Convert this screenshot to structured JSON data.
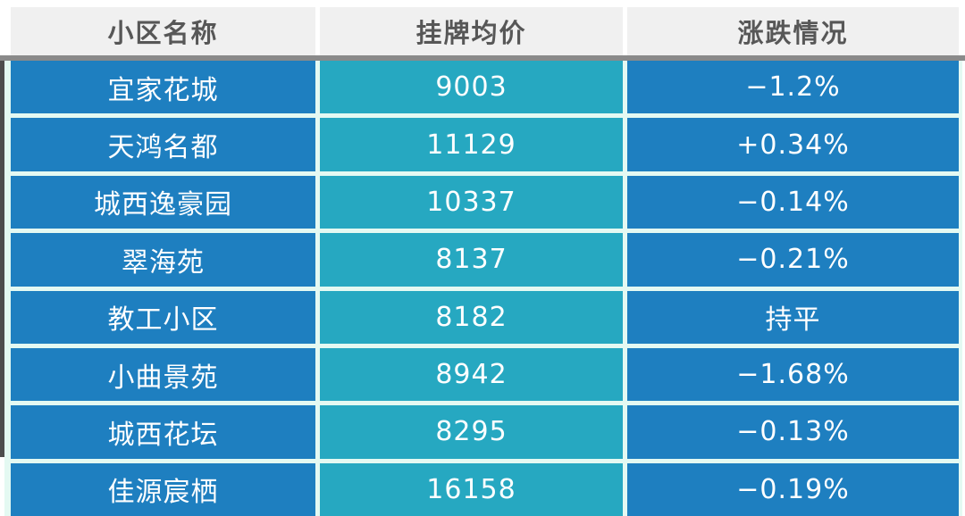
{
  "chart_data": {
    "type": "table",
    "title": "",
    "columns": [
      "小区名称",
      "挂牌均价",
      "涨跌情况"
    ],
    "rows": [
      {
        "name": "宜家花城",
        "price": "9003",
        "change": "−1.2%"
      },
      {
        "name": "天鸿名都",
        "price": "11129",
        "change": "+0.34%"
      },
      {
        "name": "城西逸豪园",
        "price": "10337",
        "change": "−0.14%"
      },
      {
        "name": "翠海苑",
        "price": "8137",
        "change": "−0.21%"
      },
      {
        "name": "教工小区",
        "price": "8182",
        "change": "持平"
      },
      {
        "name": "小曲景苑",
        "price": "8942",
        "change": "−1.68%"
      },
      {
        "name": "城西花坛",
        "price": "8295",
        "change": "−0.13%"
      },
      {
        "name": "佳源宸栖",
        "price": "16158",
        "change": "−0.19%"
      }
    ]
  },
  "colors": {
    "header_bg": "#f0f0f0",
    "header_text": "#575757",
    "separator_bar": "#8a8a8a",
    "name_change_cell": "#1e7fc0",
    "price_cell": "#26a8c1",
    "divider": "#e4f9f2",
    "cell_text": "#ffffff",
    "left_edge": "#4d4d4d"
  }
}
